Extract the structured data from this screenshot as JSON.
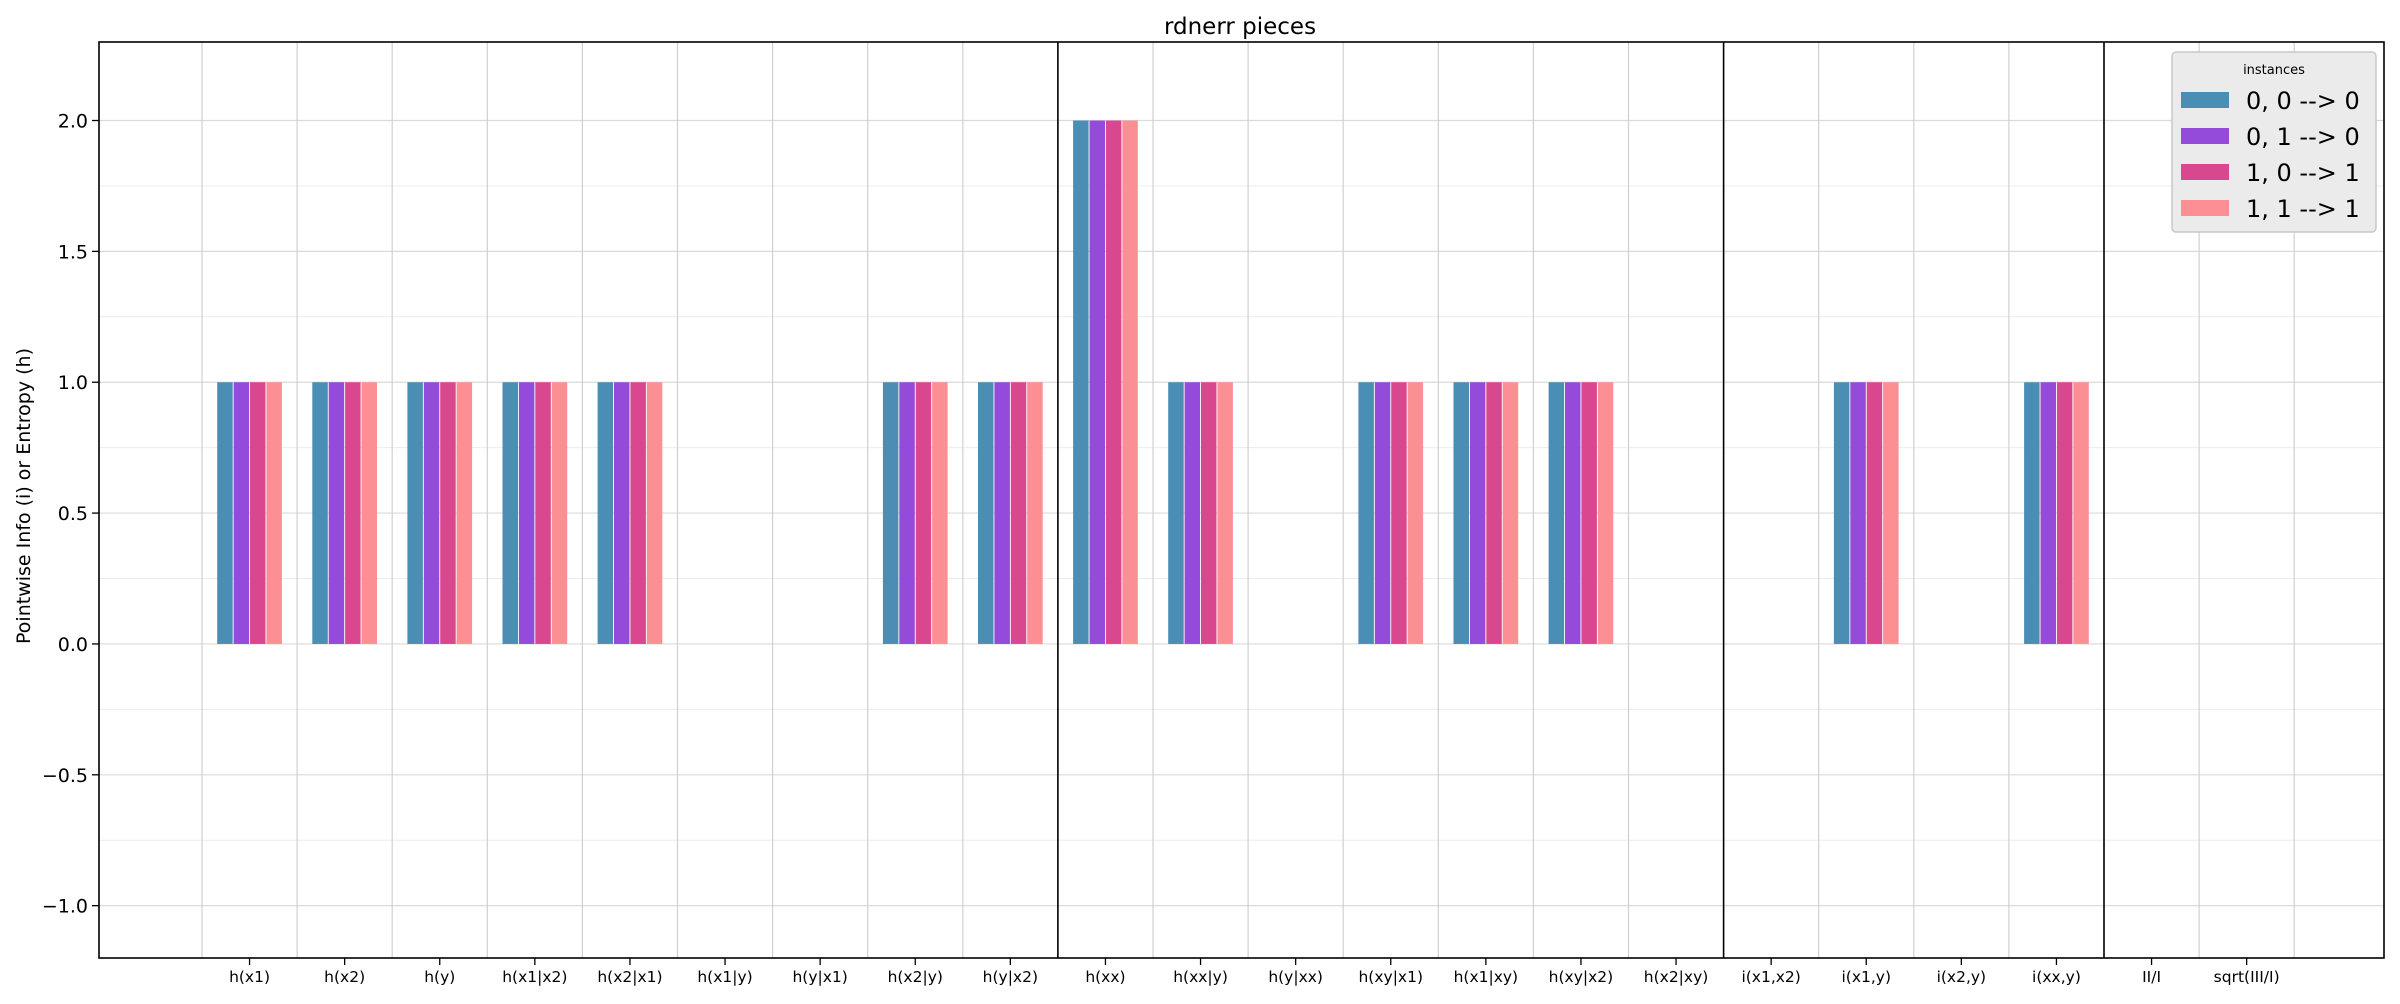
{
  "chart_data": {
    "type": "bar",
    "title": "rdnerr pieces",
    "xlabel": "",
    "ylabel": "Pointwise Info (i) or Entropy (h)",
    "ylim": [
      -1.2,
      2.3
    ],
    "yticks": [
      -1.0,
      -0.5,
      0.0,
      0.5,
      1.0,
      1.5,
      2.0
    ],
    "ytick_labels": [
      "−1.0",
      "−0.5",
      "0.0",
      "0.5",
      "1.0",
      "1.5",
      "2.0"
    ],
    "grid": true,
    "categories": [
      "h(x1)",
      "h(x2)",
      "h(y)",
      "h(x1|x2)",
      "h(x2|x1)",
      "h(x1|y)",
      "h(y|x1)",
      "h(x2|y)",
      "h(y|x2)",
      "h(xx)",
      "h(xx|y)",
      "h(y|xx)",
      "h(xy|x1)",
      "h(x1|xy)",
      "h(xy|x2)",
      "h(x2|xy)",
      "i(x1,x2)",
      "i(x1,y)",
      "i(x2,y)",
      "i(xx,y)",
      "II/I",
      "sqrt(III/I)"
    ],
    "group_separators_after": [
      "h(y|x2)",
      "h(x2|xy)",
      "i(xx,y)"
    ],
    "legend": {
      "title": "instances",
      "placement": "top-right"
    },
    "series": [
      {
        "name": "0, 0 --> 0",
        "color": "#4a8eb5",
        "values": [
          1,
          1,
          1,
          1,
          1,
          0,
          0,
          1,
          1,
          2,
          1,
          0,
          1,
          1,
          1,
          0,
          0,
          1,
          0,
          1,
          0,
          0
        ]
      },
      {
        "name": "0, 1 --> 0",
        "color": "#944bd9",
        "values": [
          1,
          1,
          1,
          1,
          1,
          0,
          0,
          1,
          1,
          2,
          1,
          0,
          1,
          1,
          1,
          0,
          0,
          1,
          0,
          1,
          0,
          0
        ]
      },
      {
        "name": "1, 0 --> 1",
        "color": "#d9488f",
        "values": [
          1,
          1,
          1,
          1,
          1,
          0,
          0,
          1,
          1,
          2,
          1,
          0,
          1,
          1,
          1,
          0,
          0,
          1,
          0,
          1,
          0,
          0
        ]
      },
      {
        "name": "1, 1 --> 1",
        "color": "#fc8f94",
        "values": [
          1,
          1,
          1,
          1,
          1,
          0,
          0,
          1,
          1,
          2,
          1,
          0,
          1,
          1,
          1,
          0,
          0,
          1,
          0,
          1,
          0,
          0
        ]
      }
    ]
  }
}
